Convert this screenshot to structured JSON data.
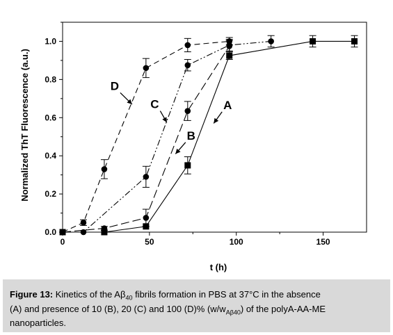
{
  "chart_data": {
    "type": "line",
    "xlabel": "t (h)",
    "ylabel": "Normalized ThT Fluorescence (a.u.)",
    "xlim": [
      0,
      175
    ],
    "ylim": [
      0,
      1.1
    ],
    "xticks": [
      0,
      50,
      100,
      150
    ],
    "yticks": [
      0.0,
      0.2,
      0.4,
      0.6,
      0.8,
      1.0
    ],
    "xtick_labels": [
      "0",
      "50",
      "100",
      "150"
    ],
    "ytick_labels": [
      "0.0",
      "0.2",
      "0.4",
      "0.6",
      "0.8",
      "1.0"
    ],
    "series": [
      {
        "name": "A",
        "marker": "square",
        "dash": "solid",
        "x": [
          0,
          24,
          48,
          72,
          96,
          144,
          168
        ],
        "y": [
          0.0,
          0.0,
          0.03,
          0.35,
          0.925,
          1.0,
          1.0
        ],
        "err": [
          0,
          0,
          0,
          0.045,
          0.02,
          0.03,
          0.03
        ]
      },
      {
        "name": "B",
        "marker": "circle",
        "dash": "long-dash",
        "x": [
          0,
          24,
          48,
          72,
          96
        ],
        "y": [
          0.0,
          0.02,
          0.075,
          0.635,
          0.975
        ],
        "err": [
          0,
          0.01,
          0.045,
          0.05,
          0.03
        ]
      },
      {
        "name": "C",
        "marker": "circle",
        "dash": "dash-dot-dot",
        "x": [
          0,
          12,
          48,
          72,
          96,
          120
        ],
        "y": [
          0.0,
          0.0,
          0.29,
          0.875,
          0.98,
          1.0
        ],
        "err": [
          0,
          0,
          0.055,
          0.03,
          0.03,
          0.03
        ]
      },
      {
        "name": "D",
        "marker": "circle",
        "dash": "medium-dash",
        "x": [
          0,
          12,
          24,
          48,
          72,
          96
        ],
        "y": [
          0.0,
          0.05,
          0.33,
          0.86,
          0.98,
          1.0
        ],
        "err": [
          0,
          0.015,
          0.05,
          0.05,
          0.035,
          0.02
        ]
      }
    ],
    "annotations": [
      {
        "text": "A",
        "x": 95,
        "y": 0.645,
        "arrow_to": [
          87,
          0.57
        ]
      },
      {
        "text": "B",
        "x": 74,
        "y": 0.485,
        "arrow_to": [
          65,
          0.41
        ]
      },
      {
        "text": "C",
        "x": 53,
        "y": 0.65,
        "arrow_to": [
          60,
          0.575
        ]
      },
      {
        "text": "D",
        "x": 30,
        "y": 0.745,
        "arrow_to": [
          40,
          0.67
        ]
      }
    ]
  },
  "caption": {
    "label": "Figure 13:",
    "line1_text": " Kinetics of the Aβ",
    "line1_sub": "40",
    "line1_rest": " fibrils formation in PBS at 37°C in the absence",
    "line2_text": "(A) and presence of 10 (B), 20 (C) and 100 (D)% (w/w",
    "line2_sub": "Aβ40",
    "line2_rest": ") of the polyA-AA-ME",
    "line3_text": "nanoparticles."
  }
}
